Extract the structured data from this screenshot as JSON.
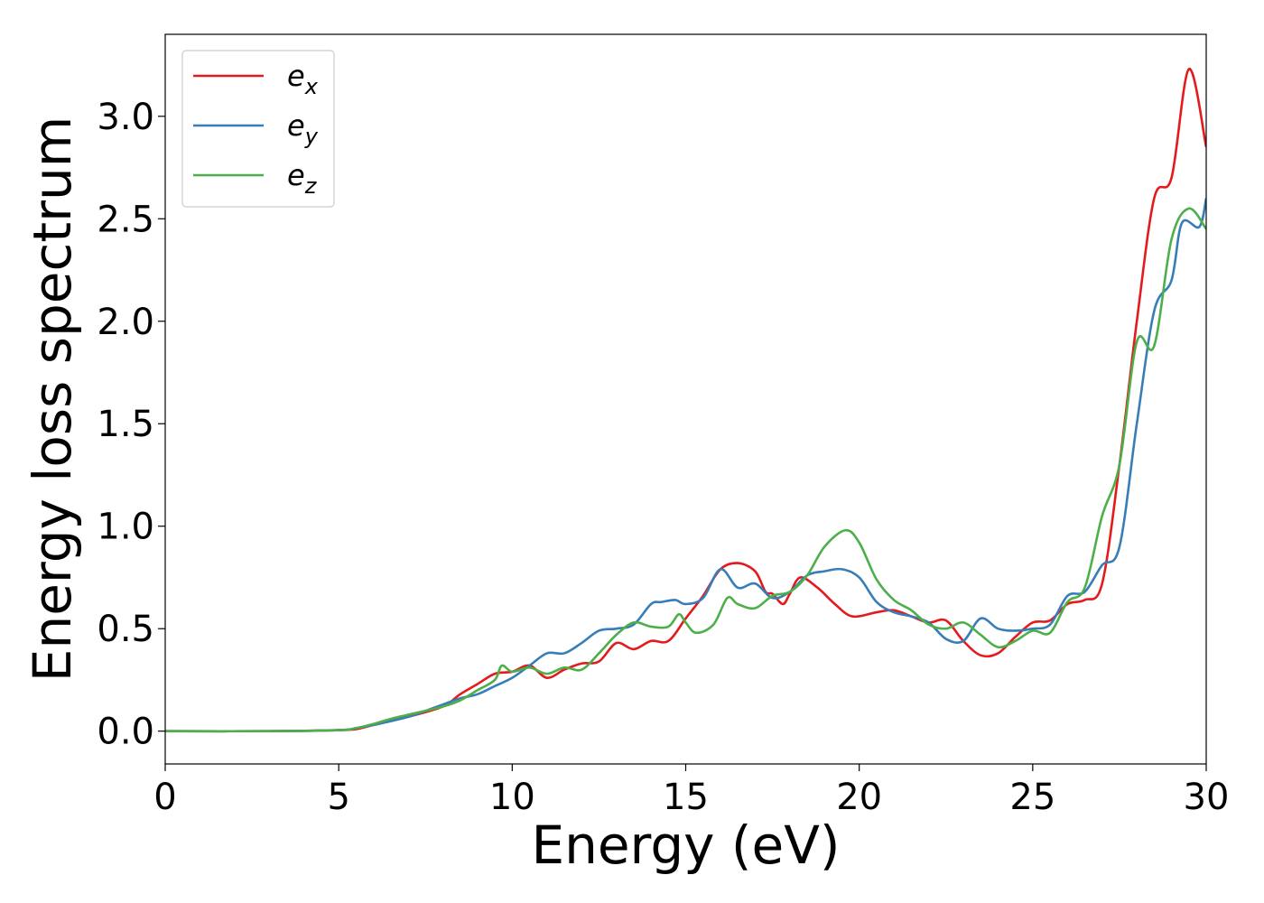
{
  "chart_data": {
    "type": "line",
    "xlabel": "Energy (eV)",
    "ylabel": "Energy loss spectrum",
    "xlim": [
      0,
      30
    ],
    "ylim": [
      -0.16,
      3.4
    ],
    "xticks": [
      0,
      5,
      10,
      15,
      20,
      25,
      30
    ],
    "yticks": [
      0.0,
      0.5,
      1.0,
      1.5,
      2.0,
      2.5,
      3.0
    ],
    "grid": false,
    "legend_position": "top-left",
    "series": [
      {
        "name": "e_x",
        "label_main": "e",
        "label_sub": "x",
        "color": "#e41a1c",
        "points": [
          [
            0,
            0
          ],
          [
            3,
            0
          ],
          [
            5,
            0.005
          ],
          [
            5.5,
            0.01
          ],
          [
            6,
            0.03
          ],
          [
            7,
            0.07
          ],
          [
            8,
            0.12
          ],
          [
            8.5,
            0.18
          ],
          [
            9,
            0.23
          ],
          [
            9.5,
            0.28
          ],
          [
            10,
            0.29
          ],
          [
            10.5,
            0.32
          ],
          [
            11,
            0.26
          ],
          [
            11.5,
            0.3
          ],
          [
            12,
            0.33
          ],
          [
            12.5,
            0.34
          ],
          [
            13,
            0.43
          ],
          [
            13.5,
            0.4
          ],
          [
            14,
            0.44
          ],
          [
            14.5,
            0.44
          ],
          [
            15,
            0.55
          ],
          [
            15.5,
            0.66
          ],
          [
            16,
            0.79
          ],
          [
            16.5,
            0.82
          ],
          [
            17,
            0.78
          ],
          [
            17.3,
            0.68
          ],
          [
            17.5,
            0.67
          ],
          [
            17.8,
            0.62
          ],
          [
            18,
            0.67
          ],
          [
            18.3,
            0.75
          ],
          [
            18.8,
            0.7
          ],
          [
            19.3,
            0.62
          ],
          [
            19.8,
            0.56
          ],
          [
            20.5,
            0.58
          ],
          [
            21,
            0.59
          ],
          [
            21.5,
            0.56
          ],
          [
            22,
            0.53
          ],
          [
            22.5,
            0.54
          ],
          [
            23,
            0.44
          ],
          [
            23.5,
            0.37
          ],
          [
            24,
            0.38
          ],
          [
            24.5,
            0.46
          ],
          [
            25,
            0.53
          ],
          [
            25.5,
            0.54
          ],
          [
            26,
            0.62
          ],
          [
            26.5,
            0.64
          ],
          [
            27,
            0.72
          ],
          [
            27.5,
            1.3
          ],
          [
            28,
            2.0
          ],
          [
            28.5,
            2.6
          ],
          [
            29,
            2.7
          ],
          [
            29.5,
            3.23
          ],
          [
            30,
            2.85
          ]
        ]
      },
      {
        "name": "e_y",
        "label_main": "e",
        "label_sub": "y",
        "color": "#377eb8",
        "points": [
          [
            0,
            0
          ],
          [
            3,
            0
          ],
          [
            5,
            0.005
          ],
          [
            5.5,
            0.015
          ],
          [
            6,
            0.03
          ],
          [
            7,
            0.07
          ],
          [
            8,
            0.13
          ],
          [
            8.5,
            0.16
          ],
          [
            9,
            0.18
          ],
          [
            9.5,
            0.22
          ],
          [
            10,
            0.26
          ],
          [
            10.5,
            0.32
          ],
          [
            11,
            0.38
          ],
          [
            11.5,
            0.38
          ],
          [
            12,
            0.43
          ],
          [
            12.5,
            0.49
          ],
          [
            13,
            0.5
          ],
          [
            13.5,
            0.52
          ],
          [
            14,
            0.62
          ],
          [
            14.3,
            0.63
          ],
          [
            14.7,
            0.64
          ],
          [
            15,
            0.62
          ],
          [
            15.5,
            0.65
          ],
          [
            16,
            0.79
          ],
          [
            16.5,
            0.7
          ],
          [
            17,
            0.72
          ],
          [
            17.5,
            0.65
          ],
          [
            18,
            0.68
          ],
          [
            18.5,
            0.76
          ],
          [
            19,
            0.78
          ],
          [
            19.5,
            0.79
          ],
          [
            20,
            0.75
          ],
          [
            20.5,
            0.63
          ],
          [
            21,
            0.58
          ],
          [
            21.5,
            0.56
          ],
          [
            22,
            0.53
          ],
          [
            22.5,
            0.45
          ],
          [
            23,
            0.44
          ],
          [
            23.5,
            0.55
          ],
          [
            24,
            0.5
          ],
          [
            24.5,
            0.49
          ],
          [
            25,
            0.5
          ],
          [
            25.5,
            0.52
          ],
          [
            26,
            0.66
          ],
          [
            26.5,
            0.68
          ],
          [
            27,
            0.81
          ],
          [
            27.5,
            0.9
          ],
          [
            28,
            1.5
          ],
          [
            28.5,
            2.05
          ],
          [
            29,
            2.2
          ],
          [
            29.3,
            2.48
          ],
          [
            29.8,
            2.46
          ],
          [
            30,
            2.6
          ]
        ]
      },
      {
        "name": "e_z",
        "label_main": "e",
        "label_sub": "z",
        "color": "#4daf4a",
        "points": [
          [
            0,
            0
          ],
          [
            3,
            0
          ],
          [
            5,
            0.005
          ],
          [
            5.5,
            0.015
          ],
          [
            6,
            0.035
          ],
          [
            6.5,
            0.06
          ],
          [
            7,
            0.08
          ],
          [
            8,
            0.12
          ],
          [
            8.5,
            0.15
          ],
          [
            9,
            0.2
          ],
          [
            9.5,
            0.25
          ],
          [
            9.7,
            0.32
          ],
          [
            10,
            0.29
          ],
          [
            10.5,
            0.31
          ],
          [
            11,
            0.28
          ],
          [
            11.5,
            0.31
          ],
          [
            12,
            0.3
          ],
          [
            12.5,
            0.38
          ],
          [
            13,
            0.47
          ],
          [
            13.5,
            0.53
          ],
          [
            14,
            0.51
          ],
          [
            14.5,
            0.51
          ],
          [
            14.8,
            0.57
          ],
          [
            15,
            0.53
          ],
          [
            15.3,
            0.48
          ],
          [
            15.8,
            0.52
          ],
          [
            16.2,
            0.65
          ],
          [
            16.5,
            0.62
          ],
          [
            17,
            0.6
          ],
          [
            17.5,
            0.66
          ],
          [
            18,
            0.68
          ],
          [
            18.5,
            0.76
          ],
          [
            19,
            0.9
          ],
          [
            19.6,
            0.98
          ],
          [
            20,
            0.92
          ],
          [
            20.5,
            0.74
          ],
          [
            21,
            0.64
          ],
          [
            21.5,
            0.59
          ],
          [
            22,
            0.52
          ],
          [
            22.5,
            0.5
          ],
          [
            23,
            0.53
          ],
          [
            23.5,
            0.47
          ],
          [
            24,
            0.41
          ],
          [
            24.5,
            0.44
          ],
          [
            25,
            0.49
          ],
          [
            25.5,
            0.48
          ],
          [
            26,
            0.63
          ],
          [
            26.5,
            0.7
          ],
          [
            27,
            1.05
          ],
          [
            27.5,
            1.3
          ],
          [
            28,
            1.9
          ],
          [
            28.5,
            1.88
          ],
          [
            29,
            2.4
          ],
          [
            29.5,
            2.55
          ],
          [
            30,
            2.45
          ]
        ]
      }
    ]
  }
}
